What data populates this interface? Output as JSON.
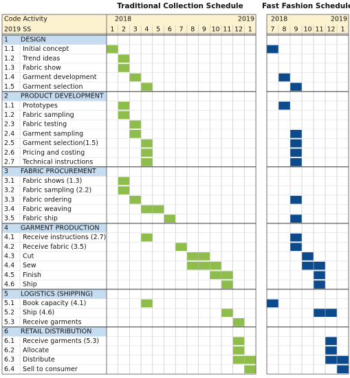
{
  "titles": {
    "traditional": "Traditional Collection Schedule",
    "fast": "Fast Fashion Schedule"
  },
  "header": {
    "top": "Code Activity",
    "bottom": "2019 SS"
  },
  "traditional": {
    "year_start": "2018",
    "year_end": "2019",
    "months": [
      1,
      2,
      3,
      4,
      5,
      6,
      7,
      8,
      9,
      10,
      11,
      12,
      1
    ]
  },
  "fast": {
    "year_start": "2018",
    "year_end": "2019",
    "months": [
      7,
      8,
      9,
      10,
      11,
      12,
      1
    ]
  },
  "rows": [
    {
      "code": "1",
      "activity": "DESIGN",
      "section": true
    },
    {
      "code": "1.1",
      "activity": "Initial concept",
      "traditional": [
        1,
        1
      ],
      "fast": [
        1,
        1
      ]
    },
    {
      "code": "1.2",
      "activity": "Trend ideas",
      "traditional": [
        2,
        2
      ]
    },
    {
      "code": "1.3",
      "activity": "Fabric show",
      "traditional": [
        2,
        2
      ]
    },
    {
      "code": "1.4",
      "activity": "Garment development",
      "traditional": [
        3,
        3
      ],
      "fast": [
        2,
        2
      ]
    },
    {
      "code": "1.5",
      "activity": "Garment selection",
      "traditional": [
        4,
        4
      ],
      "fast": [
        3,
        3
      ]
    },
    {
      "code": "2",
      "activity": "PRODUCT DEVELOPMENT",
      "section": true
    },
    {
      "code": "1.1",
      "activity": "Prototypes",
      "traditional": [
        2,
        2
      ],
      "fast": [
        2,
        2
      ]
    },
    {
      "code": "1.2",
      "activity": "Fabric sampling",
      "traditional": [
        2,
        2
      ]
    },
    {
      "code": "2.3",
      "activity": "Fabric testing",
      "traditional": [
        3,
        3
      ]
    },
    {
      "code": "2.4",
      "activity": "Garment sampling",
      "traditional": [
        3,
        3
      ],
      "fast": [
        3,
        3
      ]
    },
    {
      "code": "2.5",
      "activity": "Garment selection(1.5)",
      "traditional": [
        4,
        4
      ],
      "fast": [
        3,
        3
      ]
    },
    {
      "code": "2.6",
      "activity": "Pricing and costing",
      "traditional": [
        4,
        4
      ],
      "fast": [
        3,
        3
      ]
    },
    {
      "code": "2.7",
      "activity": "Technical instructions",
      "traditional": [
        4,
        4
      ],
      "fast": [
        3,
        3
      ]
    },
    {
      "code": "3",
      "activity": "FABRIC PROCUREMENT",
      "section": true
    },
    {
      "code": "3.1",
      "activity": "Fabric shows (1.3)",
      "traditional": [
        2,
        2
      ]
    },
    {
      "code": "3.2",
      "activity": "Fabric sampling (2.2)",
      "traditional": [
        2,
        2
      ]
    },
    {
      "code": "3.3",
      "activity": "Fabric ordering",
      "traditional": [
        3,
        3
      ],
      "fast": [
        3,
        3
      ]
    },
    {
      "code": "3.4",
      "activity": "Fabric weaving",
      "traditional": [
        4,
        5
      ]
    },
    {
      "code": "3.5",
      "activity": "Fabric ship",
      "traditional": [
        6,
        6
      ],
      "fast": [
        3,
        3
      ]
    },
    {
      "code": "4",
      "activity": "GARMENT PRODUCTION",
      "section": true
    },
    {
      "code": "4.1",
      "activity": "Receive instructions (2.7)",
      "traditional": [
        4,
        4
      ],
      "fast": [
        3,
        3
      ]
    },
    {
      "code": "4.2",
      "activity": "Receive fabric (3.5)",
      "traditional": [
        7,
        7
      ],
      "fast": [
        3,
        3
      ]
    },
    {
      "code": "4.3",
      "activity": "Cut",
      "traditional": [
        8,
        9
      ],
      "fast": [
        4,
        4
      ]
    },
    {
      "code": "4.4",
      "activity": "Sew",
      "traditional": [
        8,
        10
      ],
      "fast": [
        4,
        5
      ]
    },
    {
      "code": "4.5",
      "activity": "Finish",
      "traditional": [
        10,
        11
      ],
      "fast": [
        5,
        5
      ]
    },
    {
      "code": "4.6",
      "activity": "Ship",
      "traditional": [
        11,
        11
      ],
      "fast": [
        5,
        5
      ]
    },
    {
      "code": "5",
      "activity": "LOGISTICS (SHIPPING)",
      "section": true
    },
    {
      "code": "5.1",
      "activity": "Book capacity (4.1)",
      "traditional": [
        4,
        4
      ],
      "fast": [
        1,
        1
      ]
    },
    {
      "code": "5.2",
      "activity": "Ship (4.6)",
      "traditional": [
        11,
        11
      ],
      "fast": [
        5,
        6
      ]
    },
    {
      "code": "5.3",
      "activity": "Receive garments",
      "traditional": [
        12,
        12
      ]
    },
    {
      "code": "6",
      "activity": "RETAIL DISTRIBUTION",
      "section": true
    },
    {
      "code": "6.1",
      "activity": "Receive garments (5.3)",
      "traditional": [
        12,
        12
      ],
      "fast": [
        6,
        6
      ]
    },
    {
      "code": "6.2",
      "activity": "Allocate",
      "traditional": [
        12,
        12
      ],
      "fast": [
        6,
        6
      ]
    },
    {
      "code": "6.3",
      "activity": "Distribute",
      "traditional": [
        12,
        13
      ],
      "fast": [
        6,
        7
      ]
    },
    {
      "code": "6.4",
      "activity": "Sell to consumer",
      "traditional": [
        13,
        13
      ],
      "fast": [
        7,
        7
      ]
    }
  ]
}
